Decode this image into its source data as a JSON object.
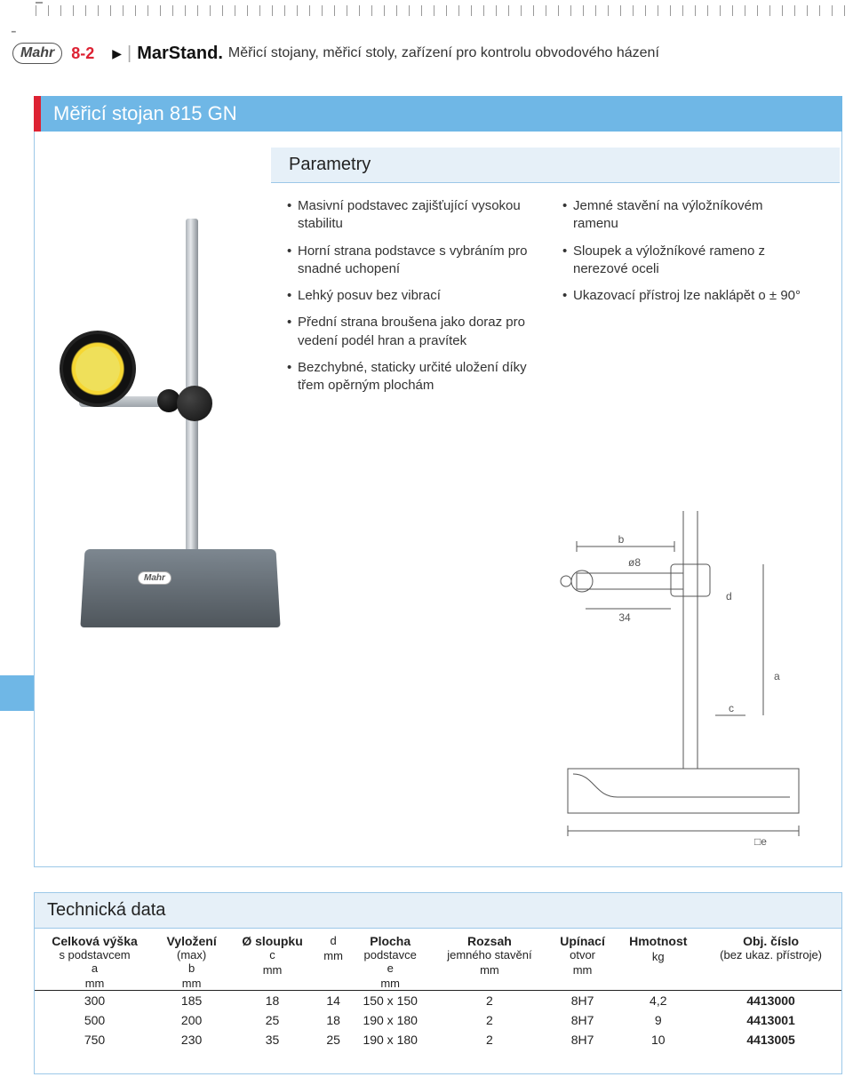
{
  "colors": {
    "blue": "#6fb7e6",
    "blue_light": "#e6f0f8",
    "blue_border": "#9cc8e8",
    "red": "#d22",
    "text": "#222"
  },
  "header": {
    "logo": "Mahr",
    "page_num": "8-2",
    "brand": "MarStand.",
    "subtitle": "Měřicí stojany, měřicí stoly, zařízení pro kontrolu obvodového házení"
  },
  "section_title": "Měřicí stojan 815 GN",
  "parametry_label": "Parametry",
  "features_left": [
    "Masivní podstavec zajišťující vysokou stabilitu",
    "Horní strana podstavce s vybráním pro snadné uchopení",
    "Lehký posuv bez vibrací",
    "Přední strana broušena jako doraz pro vedení podél hran a pravítek",
    "Bezchybné, staticky určité uložení díky třem opěrným plochám"
  ],
  "features_right": [
    "Jemné stavění na výložníkovém ramenu",
    "Sloupek a výložníkové rameno z nerezové oceli",
    "Ukazovací přístroj lze naklápět o ± 90°"
  ],
  "drawing_labels": {
    "b": "b",
    "phi8": "ø8",
    "d34": "34",
    "c": "c",
    "d": "d",
    "a": "a",
    "sq_e": "□e"
  },
  "base_logo": "Mahr",
  "tech": {
    "title": "Technická data",
    "columns": [
      {
        "h": "Celková výška",
        "sub": "s podstavcem",
        "sym": "a",
        "unit": "mm"
      },
      {
        "h": "Vyložení",
        "sub": "(max)",
        "sym": "b",
        "unit": "mm"
      },
      {
        "h": "Ø sloupku",
        "sub": "",
        "sym": "c",
        "unit": "mm"
      },
      {
        "h": "",
        "sub": "",
        "sym": "d",
        "unit": "mm"
      },
      {
        "h": "Plocha",
        "sub": "podstavce",
        "sym": "e",
        "unit": "mm"
      },
      {
        "h": "Rozsah",
        "sub": "jemného stavění",
        "sym": "",
        "unit": "mm"
      },
      {
        "h": "Upínací",
        "sub": "otvor",
        "sym": "",
        "unit": "mm"
      },
      {
        "h": "Hmotnost",
        "sub": "",
        "sym": "",
        "unit": "kg"
      },
      {
        "h": "Obj. číslo",
        "sub": "(bez ukaz. přístroje)",
        "sym": "",
        "unit": ""
      }
    ],
    "rows": [
      [
        "300",
        "185",
        "18",
        "14",
        "150 x 150",
        "2",
        "8H7",
        "4,2",
        "4413000"
      ],
      [
        "500",
        "200",
        "25",
        "18",
        "190 x 180",
        "2",
        "8H7",
        "9",
        "4413001"
      ],
      [
        "750",
        "230",
        "35",
        "25",
        "190 x 180",
        "2",
        "8H7",
        "10",
        "4413005"
      ]
    ]
  }
}
